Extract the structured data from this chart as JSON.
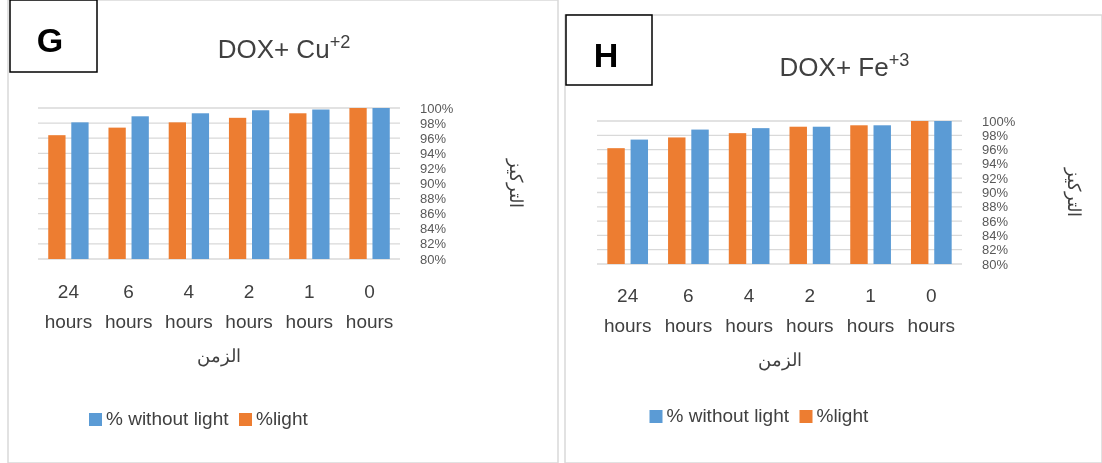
{
  "chart_data": [
    {
      "type": "bar",
      "title": "DOX+ Cu$^{+2}$",
      "xlabel": "الزمن",
      "ylabel": "التركيز",
      "annotations": [
        "G"
      ],
      "categories": [
        "24 hours",
        "6 hours",
        "4 hours",
        "2 hours",
        "1 hours",
        "0 hours"
      ],
      "series": [
        {
          "name": "%light",
          "color": "#ed7d31",
          "values": [
            96.4,
            97.4,
            98.1,
            98.7,
            99.3,
            100
          ]
        },
        {
          "name": "% without light",
          "color": "#5b9bd5",
          "values": [
            98.1,
            98.9,
            99.3,
            99.7,
            99.8,
            100
          ]
        }
      ],
      "ylim": [
        80,
        100
      ],
      "yticks": [
        {
          "value": 80,
          "label": "80%"
        },
        {
          "value": 82,
          "label": "82%"
        },
        {
          "value": 84,
          "label": "84%"
        },
        {
          "value": 86,
          "label": "86%"
        },
        {
          "value": 88,
          "label": "88%"
        },
        {
          "value": 90,
          "label": "90%"
        },
        {
          "value": 92,
          "label": "92%"
        },
        {
          "value": 94,
          "label": "94%"
        },
        {
          "value": 96,
          "label": "96%"
        },
        {
          "value": 98,
          "label": "98%"
        },
        {
          "value": 100,
          "label": "100%"
        }
      ],
      "grid": "y",
      "legend": "bottom"
    },
    {
      "type": "bar",
      "title": "DOX+ Fe$^{+3}$",
      "xlabel": "الزمن",
      "ylabel": "التركيز",
      "annotations": [
        "H"
      ],
      "categories": [
        "24 hours",
        "6 hours",
        "4 hours",
        "2 hours",
        "1 hours",
        "0 hours"
      ],
      "series": [
        {
          "name": "%light",
          "color": "#ed7d31",
          "values": [
            96.2,
            97.7,
            98.3,
            99.2,
            99.4,
            100
          ]
        },
        {
          "name": "% without light",
          "color": "#5b9bd5",
          "values": [
            97.4,
            98.8,
            99.0,
            99.2,
            99.4,
            100
          ]
        }
      ],
      "ylim": [
        80,
        100
      ],
      "yticks": [
        {
          "value": 80,
          "label": "80%"
        },
        {
          "value": 82,
          "label": "82%"
        },
        {
          "value": 84,
          "label": "84%"
        },
        {
          "value": 86,
          "label": "86%"
        },
        {
          "value": 88,
          "label": "88%"
        },
        {
          "value": 90,
          "label": "90%"
        },
        {
          "value": 92,
          "label": "92%"
        },
        {
          "value": 94,
          "label": "94%"
        },
        {
          "value": 96,
          "label": "96%"
        },
        {
          "value": 98,
          "label": "98%"
        },
        {
          "value": 100,
          "label": "100%"
        }
      ],
      "grid": "y",
      "legend": "bottom"
    }
  ]
}
